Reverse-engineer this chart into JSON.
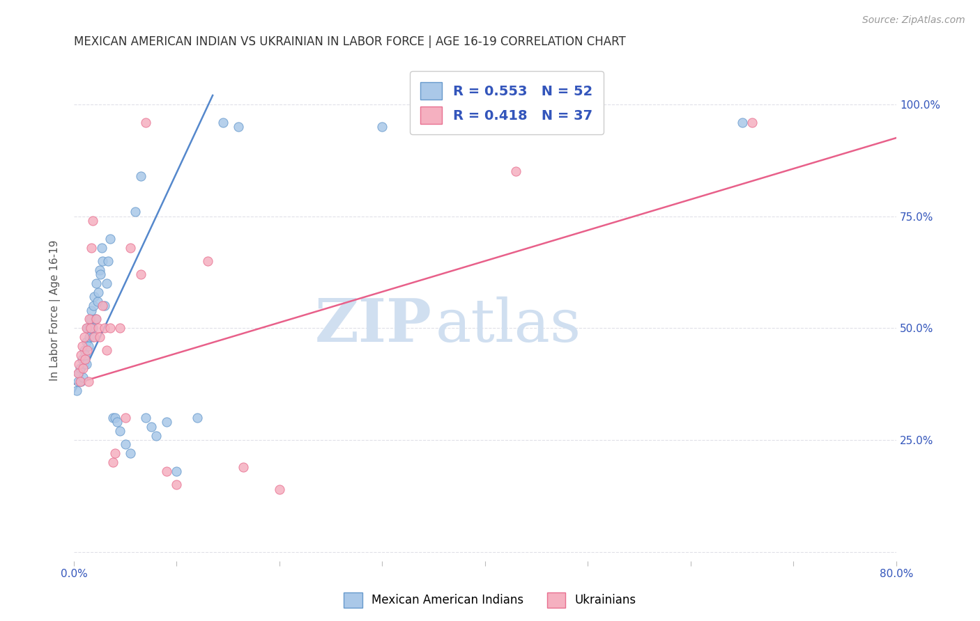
{
  "title": "MEXICAN AMERICAN INDIAN VS UKRAINIAN IN LABOR FORCE | AGE 16-19 CORRELATION CHART",
  "source": "Source: ZipAtlas.com",
  "ylabel": "In Labor Force | Age 16-19",
  "xlim": [
    0.0,
    0.8
  ],
  "ylim": [
    -0.02,
    1.1
  ],
  "blue_color": "#aac8e8",
  "pink_color": "#f5b0c0",
  "blue_edge_color": "#6699cc",
  "pink_edge_color": "#e87090",
  "blue_line_color": "#5588cc",
  "pink_line_color": "#e8608a",
  "legend_text_color": "#3355bb",
  "legend_line1": "R = 0.553   N = 52",
  "legend_line2": "R = 0.418   N = 37",
  "legend_label_blue": "Mexican American Indians",
  "legend_label_pink": "Ukrainians",
  "watermark_zip": "ZIP",
  "watermark_atlas": "atlas",
  "watermark_color": "#d0dff0",
  "title_color": "#333333",
  "ylabel_color": "#555555",
  "tick_color": "#3355bb",
  "grid_color": "#e0e0e8",
  "blue_trend_x": [
    0.0,
    0.135
  ],
  "blue_trend_y": [
    0.355,
    1.02
  ],
  "pink_trend_x": [
    0.0,
    0.8
  ],
  "pink_trend_y": [
    0.375,
    0.925
  ],
  "blue_scatter_x": [
    0.003,
    0.004,
    0.005,
    0.006,
    0.007,
    0.008,
    0.009,
    0.01,
    0.01,
    0.011,
    0.012,
    0.012,
    0.013,
    0.014,
    0.015,
    0.015,
    0.016,
    0.017,
    0.018,
    0.018,
    0.019,
    0.02,
    0.021,
    0.022,
    0.023,
    0.024,
    0.025,
    0.026,
    0.027,
    0.028,
    0.03,
    0.032,
    0.033,
    0.035,
    0.038,
    0.04,
    0.042,
    0.045,
    0.05,
    0.055,
    0.06,
    0.065,
    0.07,
    0.075,
    0.08,
    0.09,
    0.1,
    0.12,
    0.145,
    0.16,
    0.3,
    0.65
  ],
  "blue_scatter_y": [
    0.36,
    0.38,
    0.4,
    0.41,
    0.38,
    0.43,
    0.39,
    0.42,
    0.45,
    0.44,
    0.47,
    0.42,
    0.5,
    0.46,
    0.5,
    0.48,
    0.52,
    0.54,
    0.5,
    0.48,
    0.55,
    0.57,
    0.52,
    0.6,
    0.56,
    0.58,
    0.63,
    0.62,
    0.68,
    0.65,
    0.55,
    0.6,
    0.65,
    0.7,
    0.3,
    0.3,
    0.29,
    0.27,
    0.24,
    0.22,
    0.76,
    0.84,
    0.3,
    0.28,
    0.26,
    0.29,
    0.18,
    0.3,
    0.96,
    0.95,
    0.95,
    0.96
  ],
  "pink_scatter_x": [
    0.004,
    0.005,
    0.006,
    0.007,
    0.008,
    0.009,
    0.01,
    0.011,
    0.012,
    0.013,
    0.014,
    0.015,
    0.016,
    0.017,
    0.018,
    0.02,
    0.022,
    0.024,
    0.025,
    0.028,
    0.03,
    0.032,
    0.035,
    0.038,
    0.04,
    0.045,
    0.05,
    0.055,
    0.065,
    0.07,
    0.09,
    0.1,
    0.13,
    0.165,
    0.2,
    0.43,
    0.66
  ],
  "pink_scatter_y": [
    0.4,
    0.42,
    0.38,
    0.44,
    0.46,
    0.41,
    0.48,
    0.43,
    0.5,
    0.45,
    0.38,
    0.52,
    0.5,
    0.68,
    0.74,
    0.48,
    0.52,
    0.5,
    0.48,
    0.55,
    0.5,
    0.45,
    0.5,
    0.2,
    0.22,
    0.5,
    0.3,
    0.68,
    0.62,
    0.96,
    0.18,
    0.15,
    0.65,
    0.19,
    0.14,
    0.85,
    0.96
  ]
}
